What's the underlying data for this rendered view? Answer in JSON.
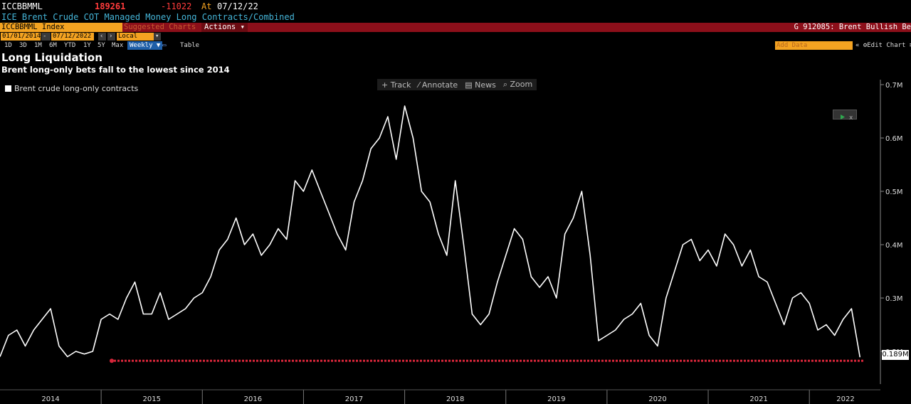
{
  "header": {
    "ticker": "ICCBBMML",
    "last_value": "189261",
    "change": "-11022",
    "at_label": "At",
    "date": "07/12/22",
    "description": "ICE Brent Crude COT Managed Money Long Contracts/Combined"
  },
  "toolbar": {
    "security": "ICCBBMML Index",
    "suggested_charts": "Suggested Charts",
    "actions": "Actions",
    "graph_title": "G 912085: Brent Bullish Be"
  },
  "dates": {
    "start": "01/01/2014",
    "end": "07/12/2022",
    "currency": "Local CCY"
  },
  "range_buttons": [
    "1D",
    "3D",
    "1M",
    "6M",
    "YTD",
    "1Y",
    "5Y",
    "Max"
  ],
  "frequency": "Weekly",
  "table_label": "Table",
  "add_data_label": "Add Data",
  "edit_chart_label": "Edit Chart",
  "tools": [
    "Track",
    "Annotate",
    "News",
    "Zoom"
  ],
  "colors": {
    "accent_orange": "#f4a321",
    "toolbar_red": "#8c0f1a",
    "line": "#ffffff",
    "reference": "#d6263a",
    "header_blue": "#45b5d8"
  },
  "chart_data": {
    "type": "line",
    "title": "Long Liquidation",
    "subtitle": "Brent long-only bets fall to the lowest since 2014",
    "legend": "top-left",
    "xlabel": "",
    "ylabel": "",
    "grid": false,
    "series": [
      {
        "name": "Brent crude long-only contracts",
        "x": [
          "2014-01",
          "2014-02",
          "2014-03",
          "2014-04",
          "2014-05",
          "2014-06",
          "2014-07",
          "2014-08",
          "2014-09",
          "2014-10",
          "2014-11",
          "2014-12",
          "2015-01",
          "2015-02",
          "2015-03",
          "2015-04",
          "2015-05",
          "2015-06",
          "2015-07",
          "2015-08",
          "2015-09",
          "2015-10",
          "2015-11",
          "2015-12",
          "2016-01",
          "2016-02",
          "2016-03",
          "2016-04",
          "2016-05",
          "2016-06",
          "2016-07",
          "2016-08",
          "2016-09",
          "2016-10",
          "2016-11",
          "2016-12",
          "2017-01",
          "2017-02",
          "2017-03",
          "2017-04",
          "2017-05",
          "2017-06",
          "2017-07",
          "2017-08",
          "2017-09",
          "2017-10",
          "2017-11",
          "2017-12",
          "2018-01",
          "2018-02",
          "2018-03",
          "2018-04",
          "2018-05",
          "2018-06",
          "2018-07",
          "2018-08",
          "2018-09",
          "2018-10",
          "2018-11",
          "2018-12",
          "2019-01",
          "2019-02",
          "2019-03",
          "2019-04",
          "2019-05",
          "2019-06",
          "2019-07",
          "2019-08",
          "2019-09",
          "2019-10",
          "2019-11",
          "2019-12",
          "2020-01",
          "2020-02",
          "2020-03",
          "2020-04",
          "2020-05",
          "2020-06",
          "2020-07",
          "2020-08",
          "2020-09",
          "2020-10",
          "2020-11",
          "2020-12",
          "2021-01",
          "2021-02",
          "2021-03",
          "2021-04",
          "2021-05",
          "2021-06",
          "2021-07",
          "2021-08",
          "2021-09",
          "2021-10",
          "2021-11",
          "2021-12",
          "2022-01",
          "2022-02",
          "2022-03",
          "2022-04",
          "2022-05",
          "2022-06",
          "2022-07"
        ],
        "values": [
          0.19,
          0.23,
          0.24,
          0.21,
          0.24,
          0.26,
          0.28,
          0.21,
          0.19,
          0.2,
          0.195,
          0.2,
          0.26,
          0.27,
          0.26,
          0.3,
          0.33,
          0.27,
          0.27,
          0.31,
          0.26,
          0.27,
          0.28,
          0.3,
          0.31,
          0.34,
          0.39,
          0.41,
          0.45,
          0.4,
          0.42,
          0.38,
          0.4,
          0.43,
          0.41,
          0.52,
          0.5,
          0.54,
          0.5,
          0.46,
          0.42,
          0.39,
          0.48,
          0.52,
          0.58,
          0.6,
          0.64,
          0.56,
          0.66,
          0.6,
          0.5,
          0.48,
          0.42,
          0.38,
          0.52,
          0.4,
          0.27,
          0.25,
          0.27,
          0.33,
          0.38,
          0.43,
          0.41,
          0.34,
          0.32,
          0.34,
          0.3,
          0.42,
          0.45,
          0.5,
          0.38,
          0.22,
          0.23,
          0.24,
          0.26,
          0.27,
          0.29,
          0.23,
          0.21,
          0.3,
          0.35,
          0.4,
          0.41,
          0.37,
          0.39,
          0.36,
          0.42,
          0.4,
          0.36,
          0.39,
          0.34,
          0.33,
          0.29,
          0.25,
          0.3,
          0.31,
          0.29,
          0.24,
          0.25,
          0.23,
          0.26,
          0.28,
          0.189
        ]
      }
    ],
    "reference_line": 0.189,
    "last_value_label": "0.189M",
    "ylim": [
      0.14,
      0.72
    ],
    "yticks": [
      "0.2M",
      "0.3M",
      "0.4M",
      "0.5M",
      "0.6M",
      "0.7M"
    ],
    "ytick_values": [
      0.2,
      0.3,
      0.4,
      0.5,
      0.6,
      0.7
    ],
    "xticks": [
      "2014",
      "2015",
      "2016",
      "2017",
      "2018",
      "2019",
      "2020",
      "2021",
      "2022"
    ]
  }
}
